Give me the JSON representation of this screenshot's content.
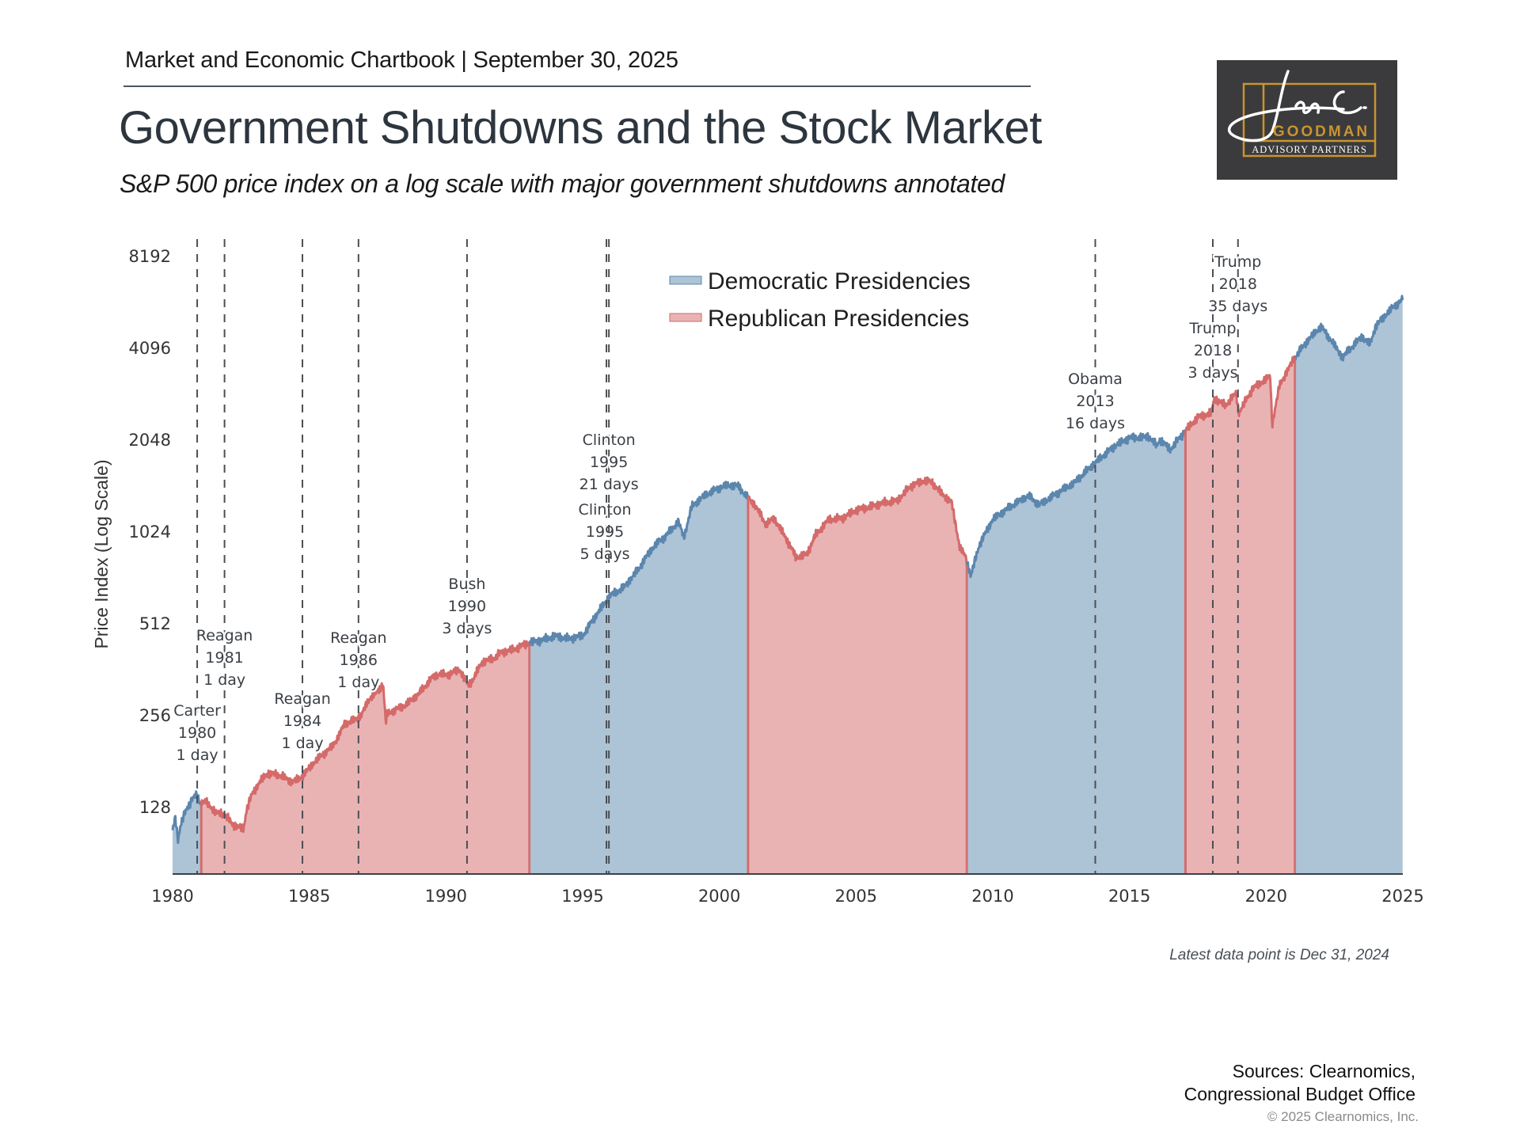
{
  "header": {
    "chartbook": "Market and Economic Chartbook | September 30, 2025",
    "title": "Government Shutdowns and the Stock Market",
    "subtitle": "S&P 500 price index on a log scale with major government shutdowns annotated"
  },
  "logo": {
    "signature": "Jon C.",
    "name": "GOODMAN",
    "tagline": "ADVISORY PARTNERS",
    "colors": {
      "background": "#3b3b3d",
      "gold": "#c9942e",
      "white": "#ffffff"
    }
  },
  "footer": {
    "note": "Latest data point is Dec 31, 2024",
    "sources_line1": "Sources: Clearnomics,",
    "sources_line2": "Congressional Budget Office",
    "copyright": "© 2025 Clearnomics, Inc."
  },
  "chart_data": {
    "type": "area",
    "title": "Government Shutdowns and the Stock Market",
    "xlabel": "",
    "ylabel": "Price Index (Log Scale)",
    "yscale": "log2",
    "xlim": [
      1980,
      2025
    ],
    "ylim": [
      77,
      8192
    ],
    "x_ticks": [
      "1980",
      "1985",
      "1990",
      "1995",
      "2000",
      "2005",
      "2010",
      "2015",
      "2020",
      "2025"
    ],
    "y_ticks": [
      "128",
      "256",
      "512",
      "1024",
      "2048",
      "4096",
      "8192"
    ],
    "grid": false,
    "legend": {
      "placement": "top-center",
      "entries": [
        {
          "label": "Democratic Presidencies",
          "color": "#5b86ad",
          "fill": "#adc3d6"
        },
        {
          "label": "Republican Presidencies",
          "color": "#d46a6a",
          "fill": "#e9b3b4"
        }
      ]
    },
    "presidencies": [
      {
        "party": "Democratic",
        "start": 1980.0,
        "end": 1981.05
      },
      {
        "party": "Republican",
        "start": 1981.05,
        "end": 1993.05
      },
      {
        "party": "Democratic",
        "start": 1993.05,
        "end": 2001.05
      },
      {
        "party": "Republican",
        "start": 2001.05,
        "end": 2009.05
      },
      {
        "party": "Democratic",
        "start": 2009.05,
        "end": 2017.05
      },
      {
        "party": "Republican",
        "start": 2017.05,
        "end": 2021.05
      },
      {
        "party": "Democratic",
        "start": 2021.05,
        "end": 2024.99
      }
    ],
    "series": [
      {
        "name": "S&P 500",
        "x": [
          1980.0,
          1980.1,
          1980.2,
          1980.3,
          1980.5,
          1980.7,
          1980.9,
          1981.0,
          1981.2,
          1981.4,
          1981.6,
          1981.8,
          1982.0,
          1982.2,
          1982.4,
          1982.6,
          1982.7,
          1982.9,
          1983.2,
          1983.5,
          1983.8,
          1984.0,
          1984.3,
          1984.6,
          1984.9,
          1985.2,
          1985.5,
          1985.8,
          1986.0,
          1986.3,
          1986.6,
          1986.9,
          1987.2,
          1987.5,
          1987.7,
          1987.8,
          1987.85,
          1988.0,
          1988.5,
          1989.0,
          1989.5,
          1989.8,
          1990.0,
          1990.5,
          1990.8,
          1991.0,
          1991.3,
          1991.8,
          1992.0,
          1992.5,
          1993.0,
          1993.5,
          1994.0,
          1994.5,
          1995.0,
          1995.5,
          1996.0,
          1996.5,
          1997.0,
          1997.5,
          1997.8,
          1998.0,
          1998.5,
          1998.7,
          1999.0,
          1999.5,
          2000.0,
          2000.3,
          2000.7,
          2001.0,
          2001.3,
          2001.7,
          2002.0,
          2002.5,
          2002.8,
          2003.2,
          2003.5,
          2004.0,
          2004.5,
          2005.0,
          2005.5,
          2006.0,
          2006.5,
          2007.0,
          2007.5,
          2007.8,
          2008.0,
          2008.5,
          2008.8,
          2009.0,
          2009.2,
          2009.5,
          2010.0,
          2010.4,
          2010.8,
          2011.3,
          2011.7,
          2012.0,
          2012.5,
          2013.0,
          2013.5,
          2014.0,
          2014.5,
          2015.0,
          2015.5,
          2015.7,
          2016.0,
          2016.1,
          2016.5,
          2017.0,
          2017.5,
          2018.0,
          2018.1,
          2018.5,
          2018.9,
          2019.0,
          2019.5,
          2020.0,
          2020.15,
          2020.22,
          2020.5,
          2020.9,
          2021.0,
          2021.5,
          2022.0,
          2022.4,
          2022.8,
          2023.0,
          2023.5,
          2023.8,
          2024.0,
          2024.5,
          2024.99
        ],
        "values": [
          107,
          118,
          100,
          112,
          125,
          135,
          140,
          132,
          133,
          128,
          122,
          122,
          118,
          112,
          110,
          108,
          125,
          140,
          155,
          165,
          163,
          162,
          155,
          157,
          167,
          180,
          190,
          200,
          212,
          240,
          245,
          255,
          290,
          305,
          325,
          240,
          258,
          262,
          275,
          300,
          340,
          350,
          345,
          360,
          320,
          335,
          380,
          395,
          410,
          420,
          440,
          450,
          465,
          455,
          465,
          545,
          630,
          670,
          760,
          890,
          950,
          980,
          1100,
          980,
          1240,
          1350,
          1420,
          1450,
          1440,
          1330,
          1250,
          1080,
          1130,
          950,
          840,
          860,
          990,
          1120,
          1130,
          1200,
          1230,
          1270,
          1290,
          1440,
          1500,
          1480,
          1400,
          1270,
          900,
          850,
          730,
          920,
          1120,
          1190,
          1260,
          1340,
          1250,
          1300,
          1390,
          1480,
          1640,
          1800,
          1960,
          2070,
          2080,
          2100,
          1950,
          2050,
          1900,
          2160,
          2420,
          2500,
          2800,
          2650,
          2900,
          2500,
          3000,
          3230,
          3300,
          2300,
          3100,
          3600,
          3750,
          4300,
          4800,
          4300,
          3800,
          4000,
          4450,
          4200,
          4800,
          5400,
          5900
        ]
      }
    ],
    "shutdowns": [
      {
        "president": "Carter",
        "year": "1980",
        "duration": "1 day",
        "x": 1980.9
      },
      {
        "president": "Reagan",
        "year": "1981",
        "duration": "1 day",
        "x": 1981.9
      },
      {
        "president": "Reagan",
        "year": "1984",
        "duration": "1 day",
        "x": 1984.75
      },
      {
        "president": "Reagan",
        "year": "1986",
        "duration": "1 day",
        "x": 1986.8
      },
      {
        "president": "Bush",
        "year": "1990",
        "duration": "3 days",
        "x": 1990.77
      },
      {
        "president": "Clinton",
        "year": "1995",
        "duration": "5 days",
        "x": 1995.87
      },
      {
        "president": "Clinton",
        "year": "1995",
        "duration": "21 days",
        "x": 1995.96
      },
      {
        "president": "Obama",
        "year": "2013",
        "duration": "16 days",
        "x": 2013.75
      },
      {
        "president": "Trump",
        "year": "2018",
        "duration": "3 days",
        "x": 2018.05
      },
      {
        "president": "Trump",
        "year": "2018",
        "duration": "35 days",
        "x": 2018.97
      }
    ]
  }
}
